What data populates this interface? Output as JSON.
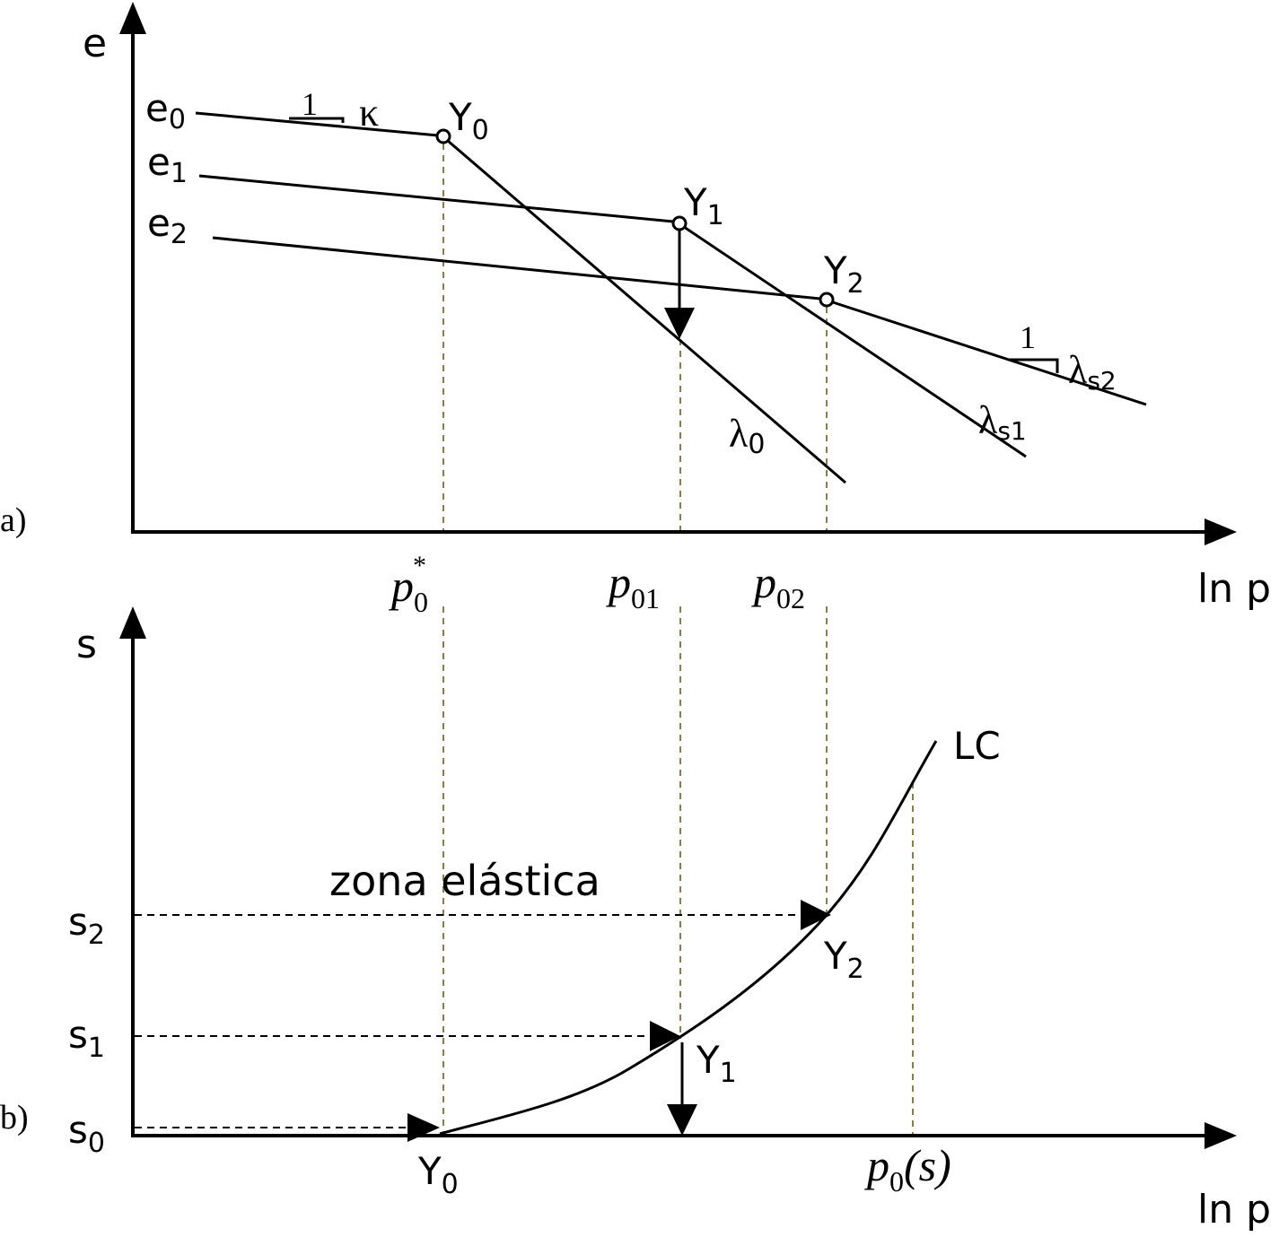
{
  "panel_a": {
    "label": "a)",
    "y_axis": "e",
    "x_axis": "ln p",
    "lines": [
      {
        "label": "e",
        "sub": "0"
      },
      {
        "label": "e",
        "sub": "1"
      },
      {
        "label": "e",
        "sub": "2"
      }
    ],
    "points": [
      {
        "label": "Y",
        "sub": "0"
      },
      {
        "label": "Y",
        "sub": "1"
      },
      {
        "label": "Y",
        "sub": "2"
      }
    ],
    "slopes": [
      {
        "run": "1",
        "label": "κ",
        "sub": ""
      },
      {
        "run": "1",
        "label": "λ",
        "sub": "s2"
      },
      {
        "run": "",
        "label": "λ",
        "sub": "s1"
      },
      {
        "run": "",
        "label": "λ",
        "sub": "0"
      }
    ],
    "pressures": [
      {
        "label": "p",
        "sub": "0",
        "sup": "*"
      },
      {
        "label": "p",
        "sub": "01",
        "sup": ""
      },
      {
        "label": "p",
        "sub": "02",
        "sup": ""
      }
    ]
  },
  "panel_b": {
    "label": "b)",
    "y_axis": "s",
    "x_axis": "ln p",
    "levels": [
      {
        "label": "s",
        "sub": "2"
      },
      {
        "label": "s",
        "sub": "1"
      },
      {
        "label": "s",
        "sub": "0"
      }
    ],
    "points": [
      {
        "label": "Y",
        "sub": "2"
      },
      {
        "label": "Y",
        "sub": "1"
      },
      {
        "label": "Y",
        "sub": "0"
      }
    ],
    "curve_label": "LC",
    "zone_label": "zona elástica",
    "p0s": {
      "label": "p",
      "sub": "0",
      "arg": "(s)"
    }
  },
  "colors": {
    "ink": "#000000",
    "guide": "#8b7d45"
  }
}
